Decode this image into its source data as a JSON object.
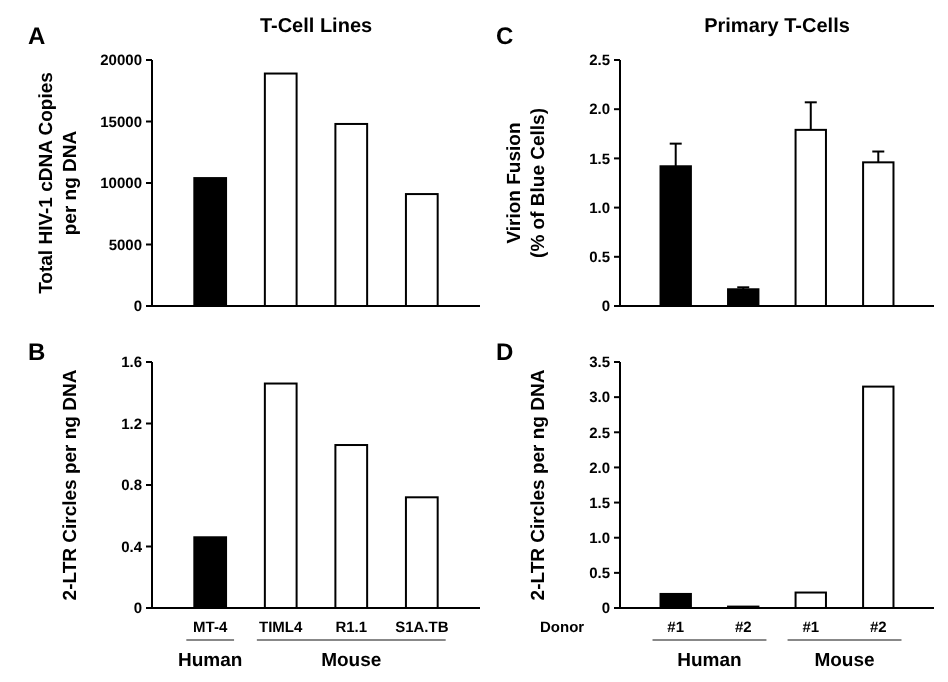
{
  "chart_data": [
    {
      "type": "bar",
      "title": "T-Cell Lines",
      "ylabel": "Total HIV-1 cDNA Copies\nper ng DNA",
      "categories": [
        null,
        null,
        null,
        null
      ],
      "values": [
        10400,
        18900,
        14800,
        9100
      ],
      "colors": [
        "#000000",
        "#ffffff",
        "#ffffff",
        "#ffffff"
      ],
      "ylim": [
        0,
        20000
      ],
      "yticks": [
        0,
        5000,
        10000,
        15000,
        20000
      ],
      "tick_labels": "y",
      "annotations": [
        "A"
      ]
    },
    {
      "type": "bar",
      "ylabel": "2-LTR Circles per ng DNA",
      "categories": [
        "MT-4",
        "TIML4",
        "R1.1",
        "S1A.TB"
      ],
      "values": [
        0.46,
        1.46,
        1.06,
        0.72
      ],
      "colors": [
        "#000000",
        "#ffffff",
        "#ffffff",
        "#ffffff"
      ],
      "ylim": [
        0,
        1.6
      ],
      "yticks": [
        0,
        0.4,
        0.8,
        1.2,
        1.6
      ],
      "annotations": [
        "B",
        "Human",
        "Mouse"
      ]
    },
    {
      "type": "bar",
      "title": "Primary T-Cells",
      "ylabel": "Virion Fusion\n(% of Blue Cells)",
      "categories": [
        null,
        null,
        null,
        null
      ],
      "values": [
        1.42,
        0.17,
        1.79,
        1.46
      ],
      "errors": [
        [
          1.42,
          1.65
        ],
        [
          0.17,
          0.19
        ],
        [
          1.79,
          2.07
        ],
        [
          1.46,
          1.57
        ]
      ],
      "colors": [
        "#000000",
        "#000000",
        "#ffffff",
        "#ffffff"
      ],
      "ylim": [
        0,
        2.5
      ],
      "yticks": [
        0,
        {
          "value": 0.5,
          "label": "0.5"
        },
        {
          "value": 1,
          "label": "1.0"
        },
        {
          "value": 1.5,
          "label": "1.5"
        },
        {
          "value": 2,
          "label": "2.0"
        },
        {
          "value": 2.5,
          "label": "2.5"
        }
      ],
      "tick_labels": "y",
      "annotations": [
        "C"
      ]
    },
    {
      "type": "bar",
      "ylabel": "2-LTR Circles per ng DNA",
      "categories": [
        "#1",
        "#2",
        "#1",
        "#2"
      ],
      "values": [
        0.2,
        0.02,
        0.22,
        3.15
      ],
      "colors": [
        "#000000",
        "#000000",
        "#ffffff",
        "#ffffff"
      ],
      "ylim": [
        0,
        3.5
      ],
      "yticks": [
        0,
        {
          "value": 0.5,
          "label": "0.5"
        },
        {
          "value": 1,
          "label": "1.0"
        },
        {
          "value": 1.5,
          "label": "1.5"
        },
        {
          "value": 2,
          "label": "2.0"
        },
        {
          "value": 2.5,
          "label": "2.5"
        },
        {
          "value": 3,
          "label": "3.0"
        },
        {
          "value": 3.5,
          "label": "3.5"
        }
      ],
      "annotations": [
        "D",
        "Donor",
        "Human",
        "Mouse"
      ]
    }
  ]
}
